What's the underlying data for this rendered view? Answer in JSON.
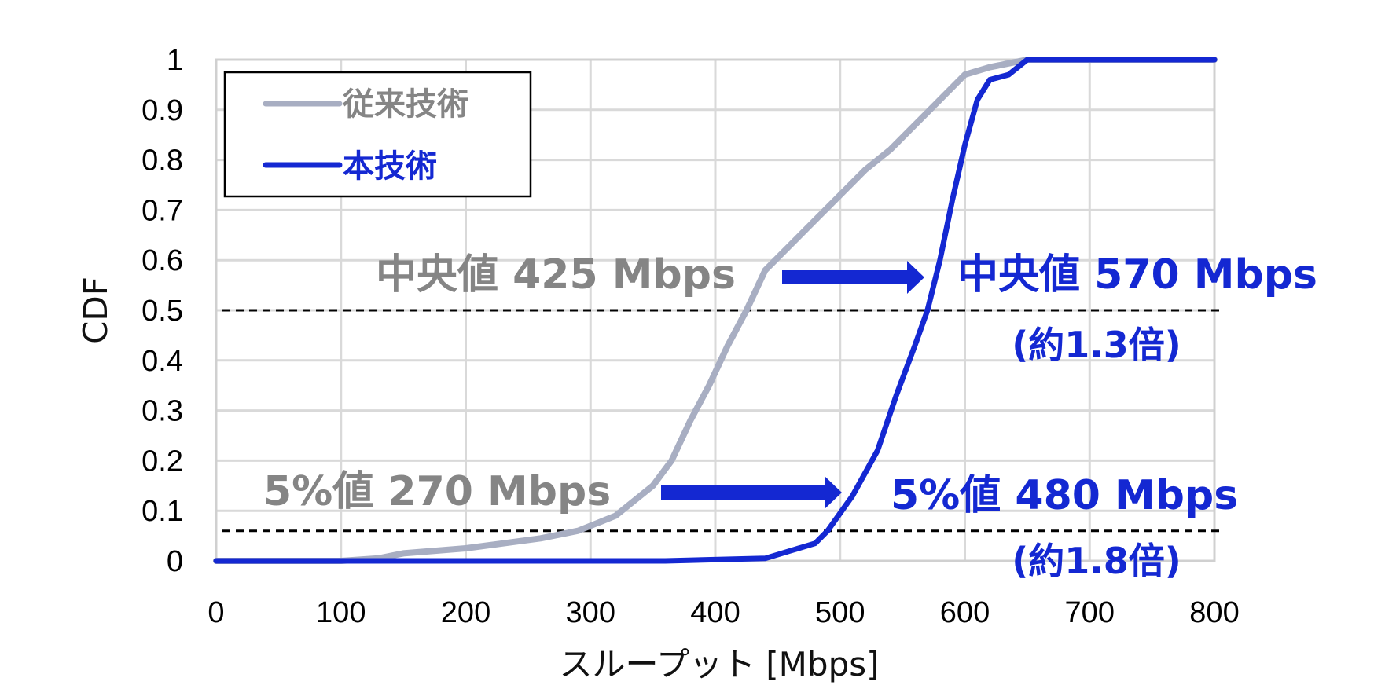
{
  "chart_data": {
    "type": "line",
    "title": "",
    "xlabel": "スループット [Mbps]",
    "ylabel": "CDF",
    "xlim": [
      0,
      800
    ],
    "ylim": [
      0,
      1
    ],
    "xticks": [
      0,
      100,
      200,
      300,
      400,
      500,
      600,
      700,
      800
    ],
    "yticks": [
      0,
      0.1,
      0.2,
      0.3,
      0.4,
      0.5,
      0.6,
      0.7,
      0.8,
      0.9,
      1
    ],
    "ytick_labels": [
      "0",
      "0.1",
      "0.2",
      "0.3",
      "0.4",
      "0.5",
      "0.6",
      "0.7",
      "0.8",
      "0.9",
      "1"
    ],
    "grid": true,
    "legend_position": "top-left",
    "series": [
      {
        "name": "従来技術",
        "color": "#a8aec2",
        "x": [
          0,
          100,
          130,
          150,
          200,
          230,
          260,
          290,
          320,
          350,
          365,
          380,
          395,
          410,
          425,
          440,
          460,
          480,
          500,
          520,
          540,
          560,
          580,
          600,
          620,
          640,
          650,
          800
        ],
        "y": [
          0,
          0,
          0.005,
          0.015,
          0.025,
          0.035,
          0.045,
          0.06,
          0.09,
          0.15,
          0.2,
          0.28,
          0.35,
          0.43,
          0.5,
          0.58,
          0.63,
          0.68,
          0.73,
          0.78,
          0.82,
          0.87,
          0.92,
          0.97,
          0.985,
          0.995,
          1,
          1
        ]
      },
      {
        "name": "本技術",
        "color": "#1428d2",
        "x": [
          0,
          360,
          440,
          460,
          480,
          490,
          510,
          530,
          545,
          560,
          570,
          580,
          590,
          600,
          610,
          620,
          635,
          650,
          800
        ],
        "y": [
          0,
          0,
          0.005,
          0.02,
          0.035,
          0.06,
          0.13,
          0.22,
          0.33,
          0.43,
          0.5,
          0.6,
          0.72,
          0.83,
          0.92,
          0.96,
          0.97,
          1,
          1
        ]
      }
    ],
    "reference_lines": [
      {
        "y": 0.5,
        "style": "dashed",
        "color": "#000000"
      },
      {
        "y": 0.06,
        "style": "dashed",
        "color": "#000000"
      }
    ],
    "annotations": [
      {
        "id": "median_old",
        "text": "中央値 425 Mbps",
        "color": "#858585"
      },
      {
        "id": "median_new",
        "text": "中央値 570 Mbps",
        "color": "#1428d2"
      },
      {
        "id": "median_ratio",
        "text": "(約1.3倍)",
        "color": "#1428d2"
      },
      {
        "id": "p5_old",
        "text": "5%値 270 Mbps",
        "color": "#858585"
      },
      {
        "id": "p5_new",
        "text": "5%値 480 Mbps",
        "color": "#1428d2"
      },
      {
        "id": "p5_ratio",
        "text": "(約1.8倍)",
        "color": "#1428d2"
      }
    ]
  }
}
